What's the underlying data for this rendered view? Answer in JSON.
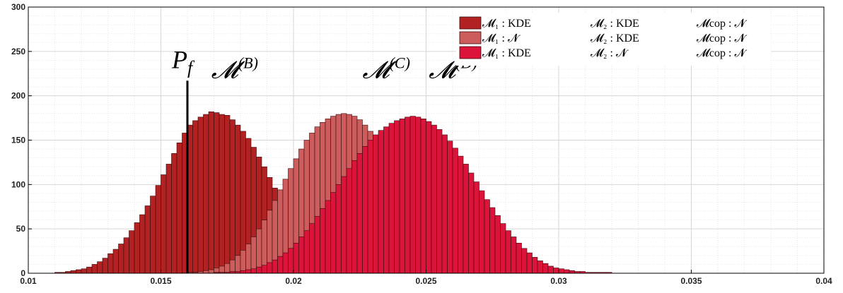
{
  "chart_data": {
    "type": "bar",
    "title": "",
    "xlabel": "",
    "ylabel": "",
    "xlim": [
      0.01,
      0.04
    ],
    "ylim": [
      0,
      300
    ],
    "x_ticks": [
      "0.01",
      "0.015",
      "0.02",
      "0.025",
      "0.03",
      "0.035",
      "0.04"
    ],
    "y_ticks": [
      "0",
      "50",
      "100",
      "150",
      "200",
      "250",
      "300"
    ],
    "grid": true,
    "legend_position": "top-right",
    "bin_width": 0.0002,
    "series": [
      {
        "legend": [
          "𝓜₁ : KDE",
          "𝓜₂ : KDE",
          "𝓜cop : 𝓝"
        ],
        "color": "#b22222",
        "bin_start": 0.011,
        "counts": [
          1,
          1,
          2,
          3,
          4,
          5,
          7,
          10,
          13,
          17,
          22,
          27,
          33,
          40,
          48,
          57,
          66,
          76,
          87,
          99,
          111,
          123,
          135,
          147,
          158,
          167,
          172,
          176,
          179,
          182,
          181,
          179,
          178,
          173,
          167,
          160,
          152,
          142,
          131,
          120,
          108,
          96,
          84,
          73,
          62,
          52,
          43,
          35,
          28,
          22,
          17,
          13,
          10,
          7,
          5,
          4,
          3,
          2,
          1,
          1
        ]
      },
      {
        "legend": [
          "𝓜₁ : 𝓝",
          "𝓜₂ : KDE",
          "𝓜cop : 𝓝"
        ],
        "color": "#cd5c5c",
        "bin_start": 0.016,
        "counts": [
          1,
          1,
          2,
          3,
          4,
          6,
          8,
          11,
          15,
          20,
          26,
          33,
          41,
          50,
          60,
          71,
          82,
          94,
          106,
          118,
          129,
          140,
          150,
          158,
          165,
          170,
          174,
          177,
          179,
          180,
          179,
          177,
          173,
          167,
          160,
          151,
          141,
          130,
          118,
          106,
          94,
          82,
          71,
          60,
          50,
          41,
          33,
          26,
          20,
          15,
          11,
          8,
          6,
          4,
          3,
          2,
          1,
          1
        ]
      },
      {
        "legend": [
          "𝓜₁ : KDE",
          "𝓜₂ : 𝓝",
          "𝓜cop : 𝓝"
        ],
        "color": "#dc143c",
        "bin_start": 0.017,
        "counts": [
          1,
          1,
          1,
          2,
          2,
          3,
          4,
          5,
          7,
          9,
          12,
          15,
          19,
          23,
          28,
          34,
          41,
          48,
          56,
          64,
          73,
          82,
          91,
          100,
          109,
          118,
          127,
          135,
          143,
          150,
          156,
          161,
          165,
          169,
          172,
          174,
          176,
          177,
          176,
          174,
          171,
          167,
          162,
          156,
          149,
          141,
          132,
          123,
          113,
          103,
          93,
          83,
          74,
          65,
          56,
          48,
          41,
          34,
          28,
          23,
          18,
          14,
          11,
          8,
          6,
          5,
          4,
          3,
          2,
          2,
          1,
          1,
          1,
          1,
          1
        ]
      }
    ],
    "annotations": {
      "pf_label": "P",
      "pf_sub": "f",
      "pf_x": 0.016,
      "pf_top": 217,
      "labels": [
        {
          "base": "𝓜",
          "sup": "(B)",
          "x": 0.0181,
          "y": 228
        },
        {
          "base": "𝓜",
          "sup": "(C)",
          "x": 0.0238,
          "y": 228
        },
        {
          "base": "𝓜",
          "sup": "(D)",
          "x": 0.0263,
          "y": 228
        }
      ]
    }
  }
}
